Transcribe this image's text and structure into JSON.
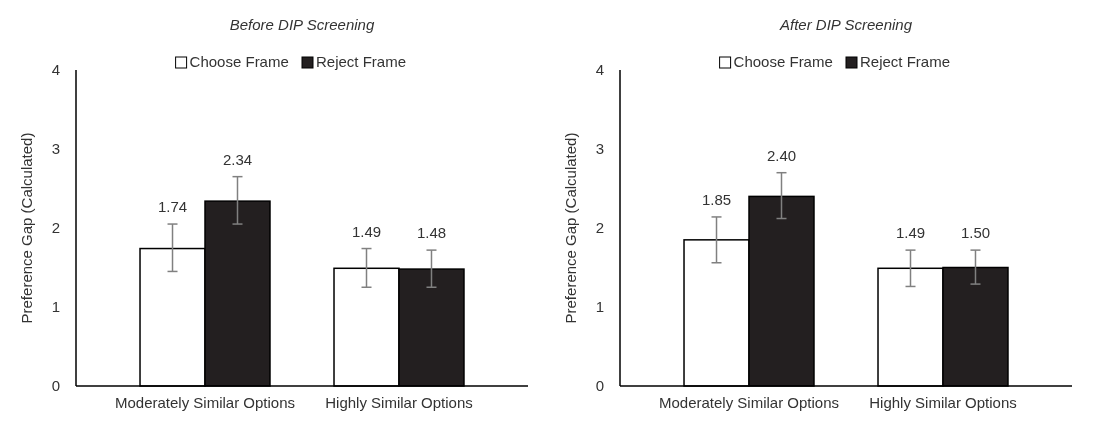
{
  "chart_data": [
    {
      "type": "bar",
      "title": "Before DIP Screening",
      "ylabel": "Preference Gap (Calculated)",
      "categories": [
        "Moderately Similar Options",
        "Highly Similar Options"
      ],
      "ylim": [
        0,
        4
      ],
      "yticks": [
        0,
        1,
        2,
        3,
        4
      ],
      "legend": "top",
      "series": [
        {
          "name": "Choose Frame",
          "color": "#ffffff",
          "values": [
            1.74,
            1.49
          ],
          "value_labels": [
            "1.74",
            "1.49"
          ],
          "errors": [
            [
              1.45,
              2.05
            ],
            [
              1.25,
              1.74
            ]
          ]
        },
        {
          "name": "Reject Frame",
          "color": "#231f20",
          "values": [
            2.34,
            1.48
          ],
          "value_labels": [
            "2.34",
            "1.48"
          ],
          "errors": [
            [
              2.05,
              2.65
            ],
            [
              1.25,
              1.72
            ]
          ]
        }
      ]
    },
    {
      "type": "bar",
      "title": "After DIP Screening",
      "ylabel": "Preference Gap (Calculated)",
      "categories": [
        "Moderately Similar Options",
        "Highly Similar Options"
      ],
      "ylim": [
        0,
        4
      ],
      "yticks": [
        0,
        1,
        2,
        3,
        4
      ],
      "legend": "top",
      "series": [
        {
          "name": "Choose Frame",
          "color": "#ffffff",
          "values": [
            1.85,
            1.49
          ],
          "value_labels": [
            "1.85",
            "1.49"
          ],
          "errors": [
            [
              1.56,
              2.14
            ],
            [
              1.26,
              1.72
            ]
          ]
        },
        {
          "name": "Reject Frame",
          "color": "#231f20",
          "values": [
            2.4,
            1.5
          ],
          "value_labels": [
            "2.40",
            "1.50"
          ],
          "errors": [
            [
              2.12,
              2.7
            ],
            [
              1.29,
              1.72
            ]
          ]
        }
      ]
    }
  ]
}
